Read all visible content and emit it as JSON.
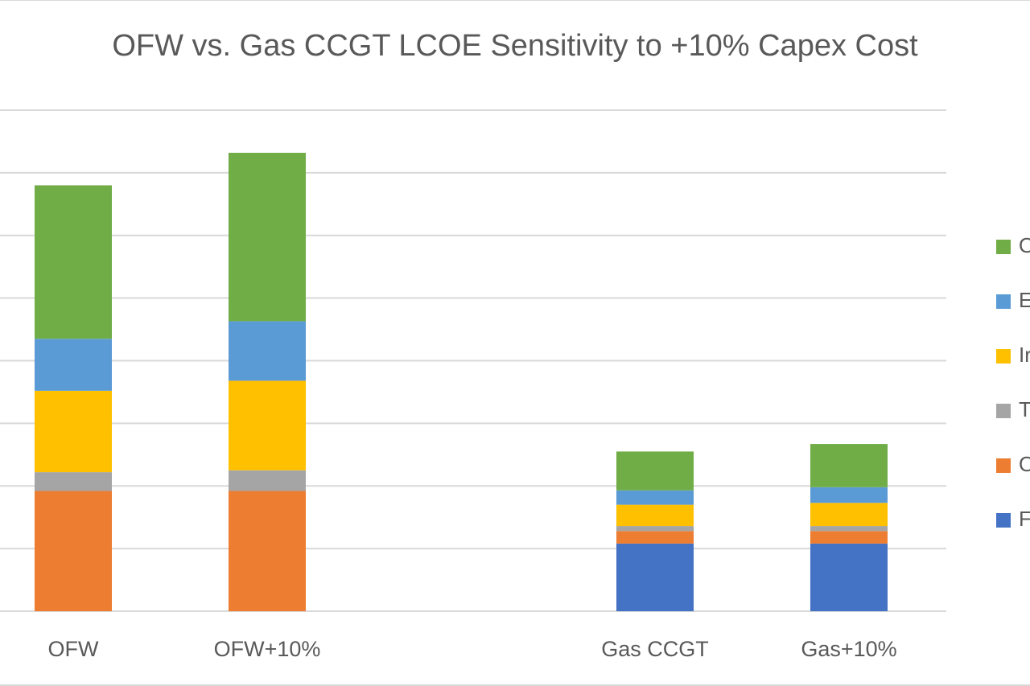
{
  "chart_data": {
    "type": "bar",
    "stacked": true,
    "title": "OFW vs. Gas CCGT LCOE Sensitivity to +10% Capex Cost",
    "categories": [
      "OFW",
      "OFW+10%",
      "Gas CCGT",
      "Gas+10%"
    ],
    "gap_after_index": 1,
    "xlabel": "",
    "ylabel": "",
    "ylim": [
      0,
      8
    ],
    "gridlines": [
      1,
      2,
      3,
      4,
      5,
      6,
      7,
      8
    ],
    "grid": true,
    "legend_position": "right",
    "series": [
      {
        "name": "F",
        "color": "#4472C4",
        "values": [
          0,
          0,
          1.08,
          1.08
        ]
      },
      {
        "name": "O",
        "color": "#ED7D31",
        "values": [
          1.92,
          1.92,
          0.2,
          0.2
        ]
      },
      {
        "name": "T",
        "color": "#A5A5A5",
        "values": [
          0.3,
          0.33,
          0.08,
          0.08
        ]
      },
      {
        "name": "Ir",
        "color": "#FFC000",
        "values": [
          1.3,
          1.43,
          0.34,
          0.37
        ]
      },
      {
        "name": "E",
        "color": "#5B9BD5",
        "values": [
          0.83,
          0.95,
          0.23,
          0.25
        ]
      },
      {
        "name": "O",
        "color": "#70AD47",
        "values": [
          2.45,
          2.69,
          0.62,
          0.69
        ]
      }
    ]
  }
}
